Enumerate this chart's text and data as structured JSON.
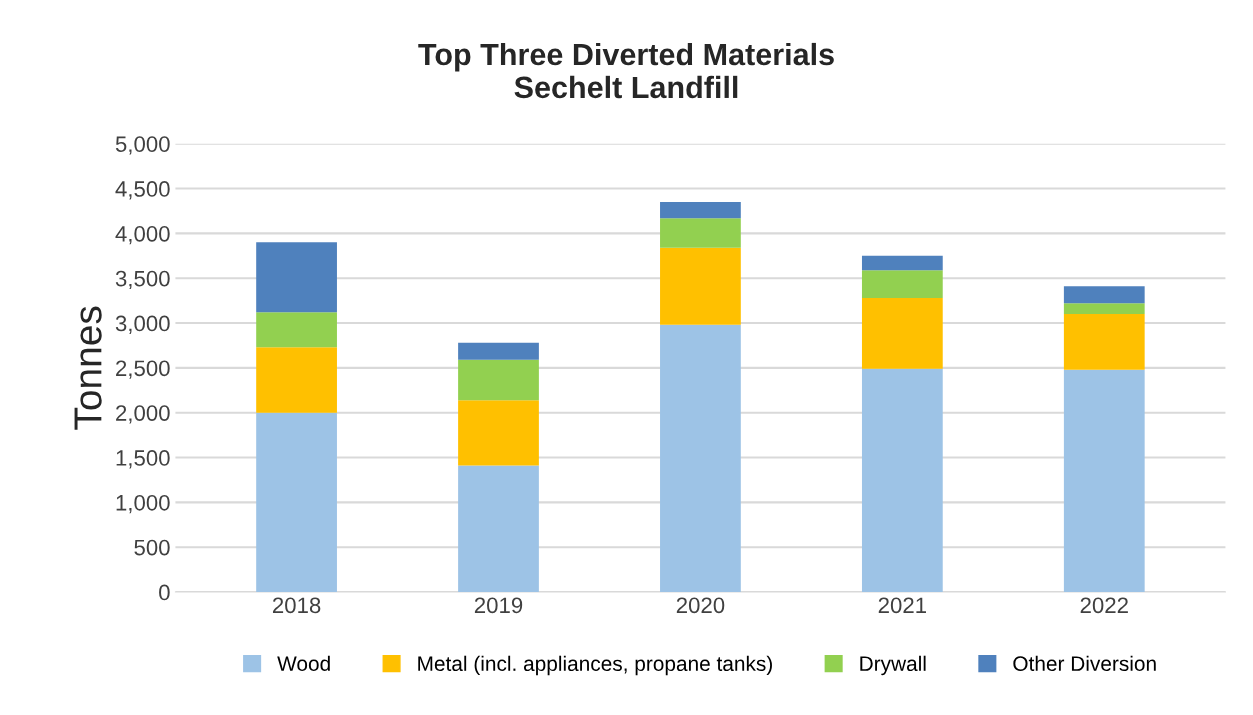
{
  "chart_data": {
    "type": "bar",
    "title": "Top Three Diverted Materials\nSechelt Landfill",
    "ylabel": "Tonnes",
    "categories": [
      "2018",
      "2019",
      "2020",
      "2021",
      "2022"
    ],
    "stacked": true,
    "series": [
      {
        "name": "Wood",
        "color": "#9dc3e6",
        "values": [
          2000,
          1410,
          2980,
          2490,
          2480
        ]
      },
      {
        "name": "Metal (incl. appliances, propane tanks)",
        "color": "#ffc000",
        "values": [
          730,
          730,
          860,
          790,
          620
        ]
      },
      {
        "name": "Drywall",
        "color": "#92d050",
        "values": [
          390,
          450,
          330,
          310,
          120
        ]
      },
      {
        "name": "Other Diversion",
        "color": "#4f81bd",
        "values": [
          780,
          190,
          180,
          160,
          190
        ]
      }
    ],
    "ylim": [
      0,
      5000
    ],
    "yticks": [
      {
        "value": 0,
        "label": "0"
      },
      {
        "value": 500,
        "label": "500"
      },
      {
        "value": 1000,
        "label": "1,000"
      },
      {
        "value": 1500,
        "label": "1,500"
      },
      {
        "value": 2000,
        "label": "2,000"
      },
      {
        "value": 2500,
        "label": "2,500"
      },
      {
        "value": 3000,
        "label": "3,000"
      },
      {
        "value": 3500,
        "label": "3,500"
      },
      {
        "value": 4000,
        "label": "4,000"
      },
      {
        "value": 4500,
        "label": "4,500"
      },
      {
        "value": 5000,
        "label": "5,000"
      }
    ],
    "grid": "y",
    "legend": "bottom"
  }
}
